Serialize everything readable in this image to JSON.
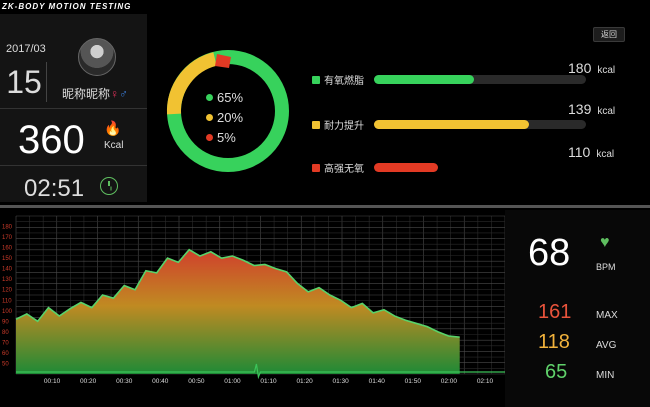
{
  "app": {
    "brand": "ZK-BODY MOTION TESTING",
    "back_label": "返回"
  },
  "profile": {
    "date": "2017/03",
    "day": "15",
    "nickname": "昵称昵称",
    "female_symbol": "♀",
    "male_symbol": "♂"
  },
  "calories": {
    "value": "360",
    "unit": "Kcal"
  },
  "elapsed": {
    "time": "02:51"
  },
  "donut": [
    {
      "label": "65%",
      "fraction": 0.65,
      "color": "#37d25c"
    },
    {
      "label": "20%",
      "fraction": 0.2,
      "color": "#f1c232"
    },
    {
      "label": "5%",
      "fraction": 0.05,
      "color": "#e23a24"
    }
  ],
  "bars": [
    {
      "label": "有氧燃脂",
      "value": "180",
      "unit": "kcal",
      "fill": 0.47,
      "color": "#37d25c"
    },
    {
      "label": "耐力提升",
      "value": "139",
      "unit": "kcal",
      "fill": 0.73,
      "color": "#f1c232"
    },
    {
      "label": "高强无氧",
      "value": "110",
      "unit": "kcal",
      "fill": 0.3,
      "color": "#e23a24"
    }
  ],
  "heart_rate": {
    "current": "68",
    "unit": "BPM",
    "max": "161",
    "max_label": "MAX",
    "avg": "118",
    "avg_label": "AVG",
    "min": "65",
    "min_label": "MIN"
  },
  "colors": {
    "max": "#e8533b",
    "avg": "#f1b23c",
    "min": "#5fd16a"
  },
  "chart_data": {
    "type": "area",
    "x_ticks": [
      "00:10",
      "00:20",
      "00:30",
      "00:40",
      "00:50",
      "01:00",
      "01:10",
      "01:20",
      "01:30",
      "01:40",
      "01:50",
      "02:00",
      "02:10"
    ],
    "y_ticks": [
      "180",
      "170",
      "160",
      "150",
      "140",
      "130",
      "120",
      "110",
      "100",
      "90",
      "80",
      "70",
      "60",
      "50"
    ],
    "ylim": [
      40,
      190
    ],
    "x_minutes": [
      0.0,
      0.05,
      0.1,
      0.15,
      0.2,
      0.25,
      0.3,
      0.35,
      0.4,
      0.45,
      0.5,
      0.55,
      0.6,
      0.65,
      0.7,
      0.75,
      0.8,
      0.85,
      0.9,
      0.95,
      1.0,
      1.05,
      1.1,
      1.15,
      1.2,
      1.25,
      1.3,
      1.35,
      1.4,
      1.45,
      1.5,
      1.55,
      1.6,
      1.65,
      1.7,
      1.75,
      1.8,
      1.85,
      1.9,
      1.95,
      2.0,
      2.05
    ],
    "bpm": [
      92,
      97,
      90,
      103,
      95,
      102,
      108,
      103,
      115,
      112,
      124,
      120,
      138,
      136,
      150,
      146,
      158,
      152,
      156,
      150,
      152,
      148,
      143,
      144,
      140,
      137,
      126,
      118,
      122,
      115,
      110,
      103,
      107,
      98,
      101,
      95,
      91,
      88,
      85,
      80,
      76,
      75
    ]
  }
}
